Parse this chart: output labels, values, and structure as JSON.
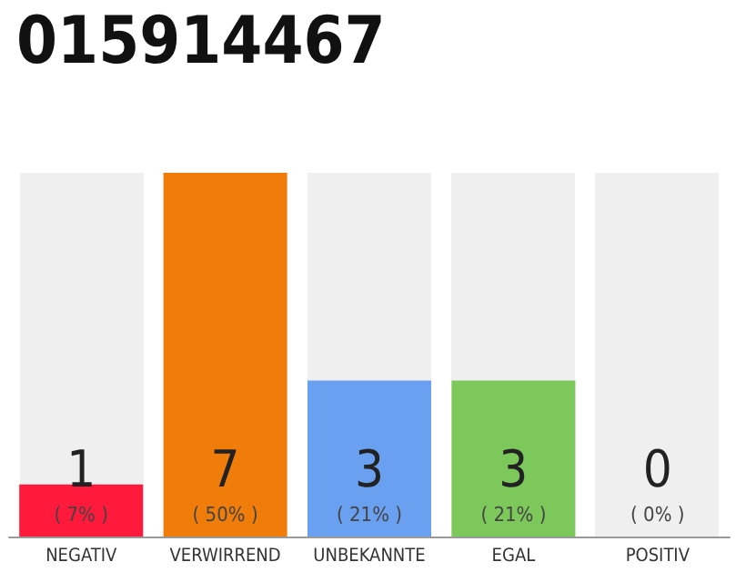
{
  "chart_data": {
    "type": "bar",
    "title": "015914467",
    "categories": [
      "NEGATIV",
      "VERWIRREND",
      "UNBEKANNTE",
      "EGAL",
      "POSITIV"
    ],
    "values": [
      1,
      7,
      3,
      3,
      0
    ],
    "colors": [
      "#ff1a3c",
      "#f07d0a",
      "#6aa0f0",
      "#7dc85a",
      "#aaaaaa"
    ],
    "data_labels": true,
    "annotations": [
      "( 7% )",
      "( 50% )",
      "( 21% )",
      "( 21% )",
      "( 0% )"
    ]
  }
}
